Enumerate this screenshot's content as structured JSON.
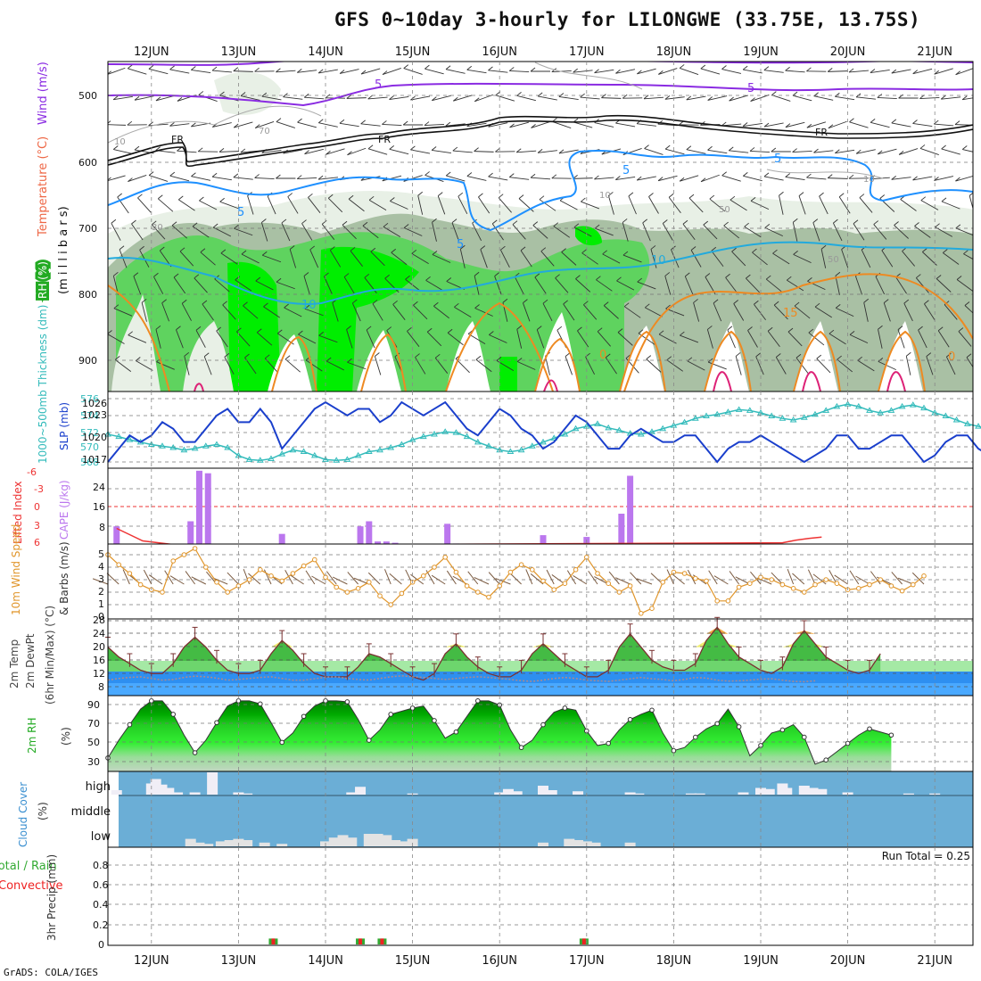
{
  "title": "GFS 0~10day 3-hourly for LILONGWE (33.75E, 13.75S)",
  "credit": "GrADS: COLA/IGES",
  "colors": {
    "frame": "#000000",
    "grid": "#999999",
    "rh_light": "#e8f0e6",
    "rh_mid": "#a9c0a4",
    "rh_green": "#5fd35f",
    "rh_bright": "#00ee00",
    "temp_purple": "#8a2be2",
    "temp_blue": "#1e90ff",
    "temp_cyan": "#22aadd",
    "temp_orange": "#ee8a22",
    "temp_magenta": "#dd2277",
    "slp": "#1a3fcc",
    "thickness": "#33bbbb",
    "cape": "#bb77ee",
    "lifted": "#ee3333",
    "wind10m": "#e0952a",
    "cloud_bg": "#6baed6",
    "cloud_bar": "#e6e6e6",
    "rh2m_dark": "#008a00",
    "precip_total": "#33aa33",
    "precip_conv": "#ee2222"
  },
  "dates": [
    "12JUN",
    "13JUN",
    "14JUN",
    "15JUN",
    "16JUN",
    "17JUN",
    "18JUN",
    "19JUN",
    "20JUN",
    "21JUN"
  ],
  "panels": {
    "upper": {
      "labels": [
        "RH (%)",
        "Temperature (°C)",
        "Wind (m/s)",
        "(m i l l i b a r s)"
      ],
      "y_ticks": [
        "500",
        "600",
        "700",
        "800",
        "900"
      ],
      "contours": [
        "5",
        "5",
        "FR",
        "FR",
        "FR",
        "5",
        "5",
        "5",
        "10",
        "10",
        "10",
        "10",
        "15",
        "0",
        "0",
        "5",
        "10",
        "30",
        "50",
        "50",
        "70"
      ]
    },
    "slp": {
      "labels": [
        "1000~500mb Thickness (dm)",
        "SLP (mb)"
      ],
      "left_ticks": [
        "576",
        "574",
        "572",
        "570",
        "568"
      ],
      "right_ticks": [
        "1026",
        "1023",
        "1020",
        "1017"
      ]
    },
    "cape": {
      "labels": [
        "Lifted Index",
        "CAPE (J/kg)"
      ],
      "left_ticks": [
        "-6",
        "-3",
        "0",
        "3",
        "6"
      ],
      "right_ticks": [
        "24",
        "16",
        "8"
      ]
    },
    "wind10m": {
      "labels": [
        "10m Wind Speed",
        "& Barbs (m/s)"
      ],
      "y_ticks": [
        "5",
        "4",
        "3",
        "2",
        "1",
        "0"
      ]
    },
    "temp2m": {
      "labels": [
        "2m Temp",
        "2m DewPt",
        "(6hr Min/Max) (°C)"
      ],
      "y_ticks": [
        "28",
        "24",
        "20",
        "16",
        "12",
        "8"
      ]
    },
    "rh2m": {
      "labels": [
        "2m RH",
        "(%)"
      ],
      "y_ticks": [
        "90",
        "70",
        "50",
        "30"
      ]
    },
    "cloud": {
      "labels": [
        "Cloud Cover",
        "(%)"
      ],
      "levels": [
        "high",
        "middle",
        "low"
      ]
    },
    "precip": {
      "labels": [
        "Total / Rain",
        "Convective",
        "3hr Precip (mm)"
      ],
      "y_ticks": [
        "0.8",
        "0.6",
        "0.4",
        "0.2",
        "0"
      ],
      "run_total": "Run Total = 0.25"
    }
  },
  "chart_data": [
    {
      "type": "line",
      "name": "slp",
      "title": "",
      "ylabel": "SLP (mb)",
      "ylim": [
        1015.5,
        1027.5
      ],
      "x_start": "11JUN 12Z",
      "x_step_hours": 3,
      "values": [
        1017,
        1019,
        1021,
        1020,
        1021,
        1023,
        1022,
        1020,
        1020,
        1022,
        1024,
        1025,
        1023,
        1023,
        1025,
        1023,
        1019,
        1021,
        1023,
        1025,
        1026,
        1025,
        1024,
        1025,
        1025,
        1023,
        1024,
        1026,
        1025,
        1024,
        1025,
        1026,
        1024,
        1022,
        1021,
        1023,
        1025,
        1024,
        1022,
        1021,
        1019,
        1020,
        1022,
        1024,
        1023,
        1021,
        1019,
        1019,
        1021,
        1022,
        1021,
        1020,
        1020,
        1021,
        1021,
        1019,
        1017,
        1019,
        1020,
        1020,
        1021,
        1020,
        1019,
        1018,
        1017,
        1018,
        1019,
        1021,
        1021,
        1019,
        1019,
        1020,
        1021,
        1021,
        1019,
        1017,
        1018,
        1020,
        1021,
        1021,
        1019,
        1018,
        1017,
        1019,
        1021,
        1021,
        1021
      ],
      "series": [
        {
          "name": "SLP (mb)",
          "values": []
        }
      ]
    },
    {
      "type": "line",
      "name": "thickness",
      "ylabel": "1000~500mb Thickness (dm)",
      "ylim": [
        567.3,
        576.6
      ],
      "x_start": "11JUN 12Z",
      "x_step_hours": 3,
      "values": [
        571.5,
        571.2,
        570.8,
        570.5,
        570.2,
        570,
        569.8,
        569.5,
        569.7,
        570,
        570.2,
        569.8,
        568.8,
        568.3,
        568.2,
        568.4,
        569,
        569.5,
        569.3,
        568.8,
        568.3,
        568.2,
        568.3,
        568.8,
        569.3,
        569.5,
        569.8,
        570.2,
        570.8,
        571.2,
        571.5,
        571.8,
        571.7,
        571.2,
        570.5,
        570,
        569.5,
        569.3,
        569.5,
        570,
        570.5,
        571,
        571.5,
        572.2,
        572.5,
        572.8,
        572.3,
        572,
        571.6,
        571.5,
        571.8,
        572.2,
        572.6,
        573,
        573.5,
        573.8,
        574,
        574.3,
        574.6,
        574.5,
        574.2,
        573.8,
        573.5,
        573.3,
        573.6,
        574,
        574.5,
        575,
        575.3,
        575,
        574.5,
        574.2,
        574.5,
        575,
        575.2,
        574.8,
        574.2,
        573.8,
        573.3,
        572.8,
        572.5,
        572.2,
        572.5,
        573,
        573.5,
        573.8,
        573.6
      ]
    },
    {
      "type": "bar",
      "name": "cape",
      "ylabel": "CAPE (J/kg)",
      "ylim": [
        0,
        30
      ],
      "bars": [
        [
          11.6,
          7
        ],
        [
          12.45,
          9
        ],
        [
          12.55,
          29
        ],
        [
          12.65,
          28
        ],
        [
          13.5,
          4
        ],
        [
          14.4,
          7
        ],
        [
          14.5,
          9
        ],
        [
          14.6,
          1
        ],
        [
          14.7,
          1
        ],
        [
          14.8,
          0.5
        ],
        [
          15.4,
          8
        ],
        [
          15.5,
          0.2
        ],
        [
          16.5,
          3.5
        ],
        [
          17.0,
          2.8
        ],
        [
          17.4,
          12
        ],
        [
          17.5,
          27
        ]
      ]
    },
    {
      "type": "line",
      "name": "lifted_index",
      "ylabel": "Lifted Index",
      "ylim": [
        6,
        -7
      ],
      "points": [
        [
          11.6,
          3.5
        ],
        [
          11.75,
          4.5
        ],
        [
          11.9,
          5.5
        ],
        [
          12.5,
          6.5
        ],
        [
          12.6,
          6
        ],
        [
          12.7,
          6.2
        ],
        [
          19.25,
          5.8
        ],
        [
          19.4,
          5.4
        ],
        [
          19.55,
          5.1
        ],
        [
          19.7,
          4.9
        ]
      ]
    },
    {
      "type": "line",
      "name": "wind10m",
      "ylabel": "10m Wind Speed (m/s)",
      "ylim": [
        0,
        5.5
      ],
      "x_start": "11JUN 12Z",
      "x_step_hours": 3,
      "values": [
        5,
        4.2,
        3.5,
        2.6,
        2.2,
        2,
        4.5,
        5,
        5.5,
        4,
        2.8,
        2,
        2.5,
        3,
        3.8,
        3.3,
        2.9,
        3.5,
        4.1,
        4.6,
        3.2,
        2.4,
        2,
        2.3,
        2.8,
        1.7,
        1,
        1.9,
        2.8,
        3.3,
        4,
        4.8,
        3.6,
        2.5,
        2,
        1.6,
        2.5,
        3.6,
        4.2,
        3.8,
        2.9,
        2.2,
        2.7,
        3.8,
        4.8,
        3.5,
        2.7,
        2,
        2.5,
        0.3,
        0.7,
        2.8,
        3.6,
        3.5,
        3.1,
        2.9,
        1.3,
        1.3,
        2.4,
        2.7,
        3.2,
        3,
        2.6,
        2.3,
        2,
        2.6,
        3,
        2.7,
        2.2,
        2.3,
        2.6,
        3,
        2.5,
        2.1,
        2.6,
        3.3
      ]
    },
    {
      "type": "area",
      "name": "temp2m",
      "ylabel": "2m Temp (°C)",
      "ylim": [
        4,
        28
      ],
      "x_start": "11JUN 12Z",
      "x_step_hours": 3,
      "values": [
        20,
        17,
        15,
        13,
        12,
        12,
        15,
        20,
        23,
        20,
        16,
        13,
        12,
        12,
        13,
        18,
        22,
        19,
        15,
        12,
        11,
        11,
        11,
        14,
        18,
        17,
        15,
        13,
        11,
        10,
        12,
        18,
        21,
        17,
        14,
        12,
        11,
        11,
        13,
        18,
        21,
        18,
        15,
        13,
        11,
        11,
        13,
        20,
        24,
        20,
        16,
        14,
        13,
        13,
        15,
        22,
        26,
        21,
        17,
        15,
        13,
        12,
        14,
        21,
        25,
        21,
        17,
        15,
        13,
        12,
        13,
        18
      ]
    },
    {
      "type": "line",
      "name": "dewpt2m",
      "ylabel": "2m DewPt (°C)",
      "ylim": [
        4,
        28
      ],
      "x_start": "11JUN 12Z",
      "x_step_hours": 3,
      "values": [
        10,
        10.5,
        10.8,
        11,
        10.5,
        10,
        10.2,
        10.8,
        11.2,
        11,
        10.6,
        10,
        10.2,
        10.5,
        10.8,
        11,
        10.5,
        10,
        10,
        10.4,
        10.9,
        11,
        10.5,
        10.2,
        10,
        10.5,
        11,
        11.3,
        11,
        10.8,
        10.5,
        10.2,
        10.5,
        10.8,
        11,
        10.8,
        10.5,
        10.2,
        9.8,
        9.6,
        10,
        10.5,
        10.8,
        10.5,
        10,
        9.8,
        9.6,
        10,
        10.4,
        10.8,
        10.4,
        10.2,
        9.8,
        10.2,
        10.8,
        10.6,
        10,
        9.7,
        9.8,
        10,
        10.3,
        10.4,
        10,
        9.6,
        9.5,
        9.8
      ]
    },
    {
      "type": "area",
      "name": "rh2m",
      "ylabel": "2m RH (%)",
      "ylim": [
        25,
        98
      ],
      "x_start": "11JUN 12Z",
      "x_step_hours": 3,
      "values": [
        38,
        55,
        70,
        85,
        93,
        93,
        80,
        60,
        43,
        55,
        72,
        88,
        93,
        93,
        90,
        72,
        53,
        62,
        78,
        88,
        93,
        93,
        92,
        75,
        55,
        65,
        80,
        83,
        86,
        88,
        74,
        57,
        63,
        78,
        93,
        93,
        89,
        65,
        48,
        55,
        70,
        82,
        86,
        84,
        64,
        50,
        52,
        65,
        75,
        80,
        84,
        62,
        45,
        48,
        58,
        66,
        71,
        85,
        68,
        40,
        50,
        62,
        65,
        70,
        58,
        32,
        36,
        44,
        52,
        60,
        66,
        63,
        60
      ]
    },
    {
      "type": "bar",
      "name": "cloud_high",
      "ylabel": "high (%)",
      "bars": [
        [
          11.6,
          20
        ],
        [
          12.0,
          50
        ],
        [
          12.05,
          70
        ],
        [
          12.12,
          45
        ],
        [
          12.2,
          30
        ],
        [
          12.3,
          10
        ],
        [
          12.5,
          10
        ],
        [
          12.7,
          100
        ],
        [
          13.0,
          10
        ],
        [
          13.1,
          5
        ],
        [
          14.3,
          10
        ],
        [
          14.4,
          35
        ],
        [
          15.0,
          5
        ],
        [
          16.0,
          10
        ],
        [
          16.1,
          25
        ],
        [
          16.2,
          15
        ],
        [
          16.5,
          10
        ],
        [
          16.5,
          40
        ],
        [
          16.6,
          20
        ],
        [
          16.9,
          15
        ],
        [
          17.5,
          10
        ],
        [
          17.6,
          5
        ],
        [
          18.2,
          5
        ],
        [
          18.3,
          5
        ],
        [
          18.8,
          10
        ],
        [
          19.0,
          30
        ],
        [
          19.1,
          25
        ],
        [
          19.25,
          50
        ],
        [
          19.3,
          30
        ],
        [
          19.5,
          40
        ],
        [
          19.6,
          30
        ],
        [
          19.7,
          25
        ],
        [
          20.0,
          10
        ],
        [
          20.7,
          5
        ],
        [
          21.0,
          5
        ]
      ]
    },
    {
      "type": "bar",
      "name": "cloud_low",
      "ylabel": "low (%)",
      "bars": [
        [
          12.45,
          30
        ],
        [
          12.55,
          15
        ],
        [
          12.65,
          10
        ],
        [
          12.8,
          20
        ],
        [
          12.9,
          25
        ],
        [
          13.0,
          30
        ],
        [
          13.1,
          25
        ],
        [
          13.3,
          15
        ],
        [
          13.5,
          10
        ],
        [
          14.0,
          20
        ],
        [
          14.1,
          35
        ],
        [
          14.2,
          45
        ],
        [
          14.3,
          35
        ],
        [
          14.5,
          50
        ],
        [
          14.6,
          50
        ],
        [
          14.7,
          45
        ],
        [
          14.8,
          25
        ],
        [
          14.9,
          20
        ],
        [
          15.0,
          30
        ],
        [
          16.5,
          15
        ],
        [
          16.8,
          30
        ],
        [
          16.9,
          25
        ],
        [
          17.0,
          20
        ],
        [
          17.1,
          15
        ],
        [
          17.5,
          15
        ]
      ]
    },
    {
      "type": "bar",
      "name": "precip3hr",
      "ylabel": "3hr Precip (mm)",
      "ylim": [
        0,
        1
      ],
      "bars": [
        [
          13.4,
          0.06
        ],
        [
          14.4,
          0.06
        ],
        [
          14.65,
          0.06
        ],
        [
          16.97,
          0.06
        ]
      ]
    }
  ]
}
